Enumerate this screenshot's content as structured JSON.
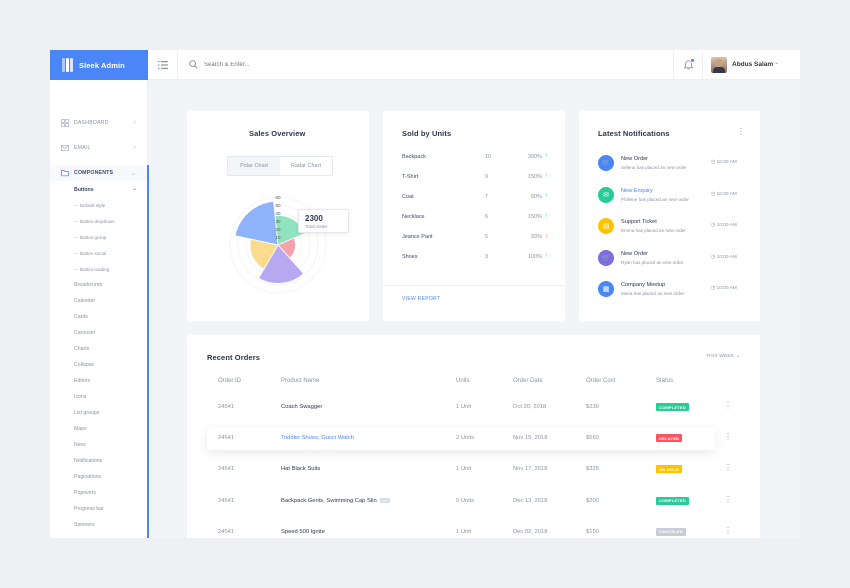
{
  "brand": {
    "name": "Sleek Admin"
  },
  "search": {
    "placeholder": "Search & Enter..."
  },
  "user": {
    "name": "Abdus Salam"
  },
  "sidebar": {
    "items": [
      {
        "label": "DASHBOARD"
      },
      {
        "label": "EMAIL"
      },
      {
        "label": "COMPONENTS"
      }
    ],
    "buttons_label": "Buttons",
    "buttons_children": [
      "Default style",
      "Button dropdown",
      "Button group",
      "Button social",
      "Button loading"
    ],
    "components": [
      "Breadcrumb",
      "Calender",
      "Cards",
      "Carousel",
      "Charts",
      "Collapse",
      "Editors",
      "Icons",
      "List groups",
      "Maps",
      "Navs",
      "Notifications",
      "Paginations",
      "Popovers",
      "Progress bar",
      "Spinners"
    ]
  },
  "sales_overview": {
    "title": "Sales Overview",
    "tabs": [
      "Polar Chart",
      "Radar Chart"
    ],
    "tooltip_value": "2300",
    "tooltip_label": "Total Sales"
  },
  "chart_data": {
    "type": "polar",
    "ticks": [
      "60",
      "50",
      "40",
      "30",
      "20",
      "10"
    ],
    "rmax": 60,
    "values": [
      55,
      37,
      22,
      48,
      35
    ],
    "colors": [
      "#8fb3fb",
      "#8fe3bf",
      "#f4a3ad",
      "#b7a9f1",
      "#fbdc8e"
    ]
  },
  "sold_by_units": {
    "title": "Sold by Units",
    "rows": [
      {
        "name": "Backpack",
        "count": "10",
        "pct": "300%",
        "dir": "up"
      },
      {
        "name": "T-Shirt",
        "count": "9",
        "pct": "150%",
        "dir": "up"
      },
      {
        "name": "Coat",
        "count": "7",
        "pct": "50%",
        "dir": "up"
      },
      {
        "name": "Necklace",
        "count": "6",
        "pct": "150%",
        "dir": "up"
      },
      {
        "name": "Jeance Pant",
        "count": "5",
        "pct": "33%",
        "dir": "down"
      },
      {
        "name": "Shoes",
        "count": "3",
        "pct": "100%",
        "dir": "up"
      }
    ],
    "view_report": "VIEW REPORT"
  },
  "notifications": {
    "title": "Latest Notifications",
    "items": [
      {
        "title": "New Order",
        "sub": "Selena has placed an new order",
        "time": "10:00 AM",
        "color": "#4a86f7",
        "icon": "cart-icon",
        "glyph": "🛒",
        "link": false
      },
      {
        "title": "New Enquiry",
        "sub": "Phileine has placed an new order",
        "time": "10:00 AM",
        "color": "#29cc97",
        "icon": "mail-icon",
        "glyph": "✉",
        "link": true
      },
      {
        "title": "Support Ticket",
        "sub": "Emma has placed an new order",
        "time": "10:00 AM",
        "color": "#fec400",
        "icon": "ticket-icon",
        "glyph": "▤",
        "link": false
      },
      {
        "title": "New Order",
        "sub": "Ryan has placed an new order",
        "time": "10:00 AM",
        "color": "#7e6bde",
        "icon": "cart-icon",
        "glyph": "🛒",
        "link": false
      },
      {
        "title": "Company Meetup",
        "sub": "Maria has placed an new order",
        "time": "10:00 AM",
        "color": "#4a86f7",
        "icon": "calendar-icon",
        "glyph": "▦",
        "link": false
      }
    ]
  },
  "orders": {
    "title": "Recent Orders",
    "filter": "THIS WEEK",
    "columns": [
      "Order ID",
      "Product Name",
      "Units",
      "Order Date",
      "Order Cost",
      "Status"
    ],
    "rows": [
      {
        "id": "24541",
        "product": "Coach Swagger",
        "tag": "",
        "units": "1 Unit",
        "date": "Oct 20, 2018",
        "cost": "$230",
        "status": "COMPLETED",
        "status_color": "#29cc97",
        "link": false,
        "highlight": false
      },
      {
        "id": "24541",
        "product": "Toddler Shoes, Gucci Watch",
        "tag": "",
        "units": "2 Units",
        "date": "Nov 15, 2018",
        "cost": "$550",
        "status": "DELAYED",
        "status_color": "#fe5461",
        "link": true,
        "highlight": true
      },
      {
        "id": "24541",
        "product": "Hat Black Suits",
        "tag": "",
        "units": "1 Unit",
        "date": "Nov 17, 2018",
        "cost": "$325",
        "status": "ON HOLD",
        "status_color": "#fec400",
        "link": false,
        "highlight": false
      },
      {
        "id": "24541",
        "product": "Backpack Gents, Swimming Cap Slin",
        "tag": "•••",
        "units": "5 Units",
        "date": "Dec 13, 2018",
        "cost": "$200",
        "status": "COMPLETED",
        "status_color": "#29cc97",
        "link": false,
        "highlight": false
      },
      {
        "id": "24541",
        "product": "Speed 500 Ignite",
        "tag": "",
        "units": "1 Unit",
        "date": "Dec 02, 2018",
        "cost": "$150",
        "status": "CANCELED",
        "status_color": "#c8ccd6",
        "link": false,
        "highlight": false
      }
    ]
  }
}
